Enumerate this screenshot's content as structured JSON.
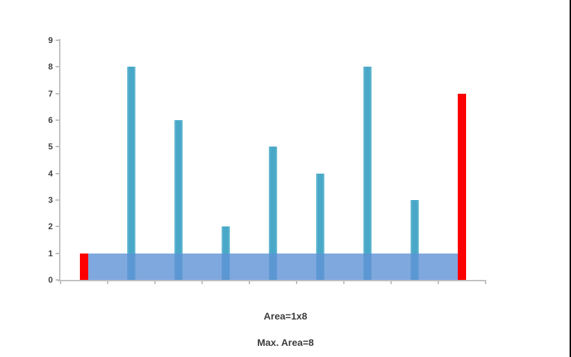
{
  "chart_data": {
    "type": "bar",
    "title": "",
    "x": [
      1,
      2,
      3,
      4,
      5,
      6,
      7,
      8,
      9
    ],
    "values": [
      1,
      8,
      6,
      2,
      5,
      4,
      8,
      3,
      7
    ],
    "bar_colors": [
      "#fc0000",
      "#49a8c8",
      "#49a8c8",
      "#49a8c8",
      "#49a8c8",
      "#49a8c8",
      "#49a8c8",
      "#49a8c8",
      "#fc0000"
    ],
    "pointer_bar_indices": [
      0,
      8
    ],
    "ylim": [
      0,
      9
    ],
    "y_ticks": [
      "0",
      "1",
      "2",
      "3",
      "4",
      "5",
      "6",
      "7",
      "8",
      "9"
    ],
    "x_tick_count": 10,
    "x_tick_labels": [],
    "grid": false,
    "legend": false,
    "overlay": {
      "type": "water-band",
      "level": 1,
      "from_bar": 1,
      "to_bar": 9,
      "fill": "rgba(95,146,214,0.8)"
    },
    "annotations": [
      "Area=1x8",
      "Max. Area=8"
    ],
    "colors": {
      "pointer_bar": "#fc0000",
      "bar": "#49a8c8",
      "axis": "#bfbfbf",
      "tick_label": "#3f3f3f",
      "caption": "#3b3b3b",
      "edge_line": "#000000"
    }
  },
  "captions": {
    "area": "Area=1x8",
    "max_area": "Max. Area=8"
  }
}
